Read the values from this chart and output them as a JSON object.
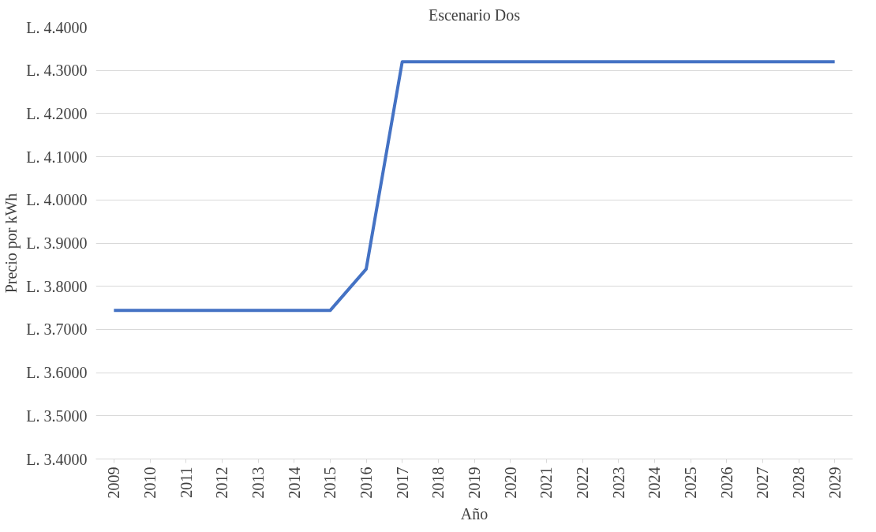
{
  "chart_data": {
    "type": "line",
    "title": "Escenario Dos",
    "xlabel": "Año",
    "ylabel": "Precio por kWh",
    "categories": [
      "2009",
      "2010",
      "2011",
      "2012",
      "2013",
      "2014",
      "2015",
      "2016",
      "2017",
      "2018",
      "2019",
      "2020",
      "2021",
      "2022",
      "2023",
      "2024",
      "2025",
      "2026",
      "2027",
      "2028",
      "2029"
    ],
    "series": [
      {
        "color": "#4472c4",
        "values": [
          3.744,
          3.744,
          3.744,
          3.744,
          3.744,
          3.744,
          3.744,
          3.84,
          4.32,
          4.32,
          4.32,
          4.32,
          4.32,
          4.32,
          4.32,
          4.32,
          4.32,
          4.32,
          4.32,
          4.32,
          4.32
        ]
      }
    ],
    "ylim": [
      3.4,
      4.4
    ],
    "yticks": [
      {
        "value": 3.4,
        "label": "L. 3.4000"
      },
      {
        "value": 3.5,
        "label": "L. 3.5000"
      },
      {
        "value": 3.6,
        "label": "L. 3.6000"
      },
      {
        "value": 3.7,
        "label": "L. 3.7000"
      },
      {
        "value": 3.8,
        "label": "L. 3.8000"
      },
      {
        "value": 3.9,
        "label": "L. 3.9000"
      },
      {
        "value": 4.0,
        "label": "L. 4.0000"
      },
      {
        "value": 4.1,
        "label": "L. 4.1000"
      },
      {
        "value": 4.2,
        "label": "L. 4.2000"
      },
      {
        "value": 4.3,
        "label": "L. 4.3000"
      },
      {
        "value": 4.4,
        "label": "L. 4.4000"
      }
    ],
    "grid": "y",
    "marker": "none",
    "line_style": "solid"
  }
}
